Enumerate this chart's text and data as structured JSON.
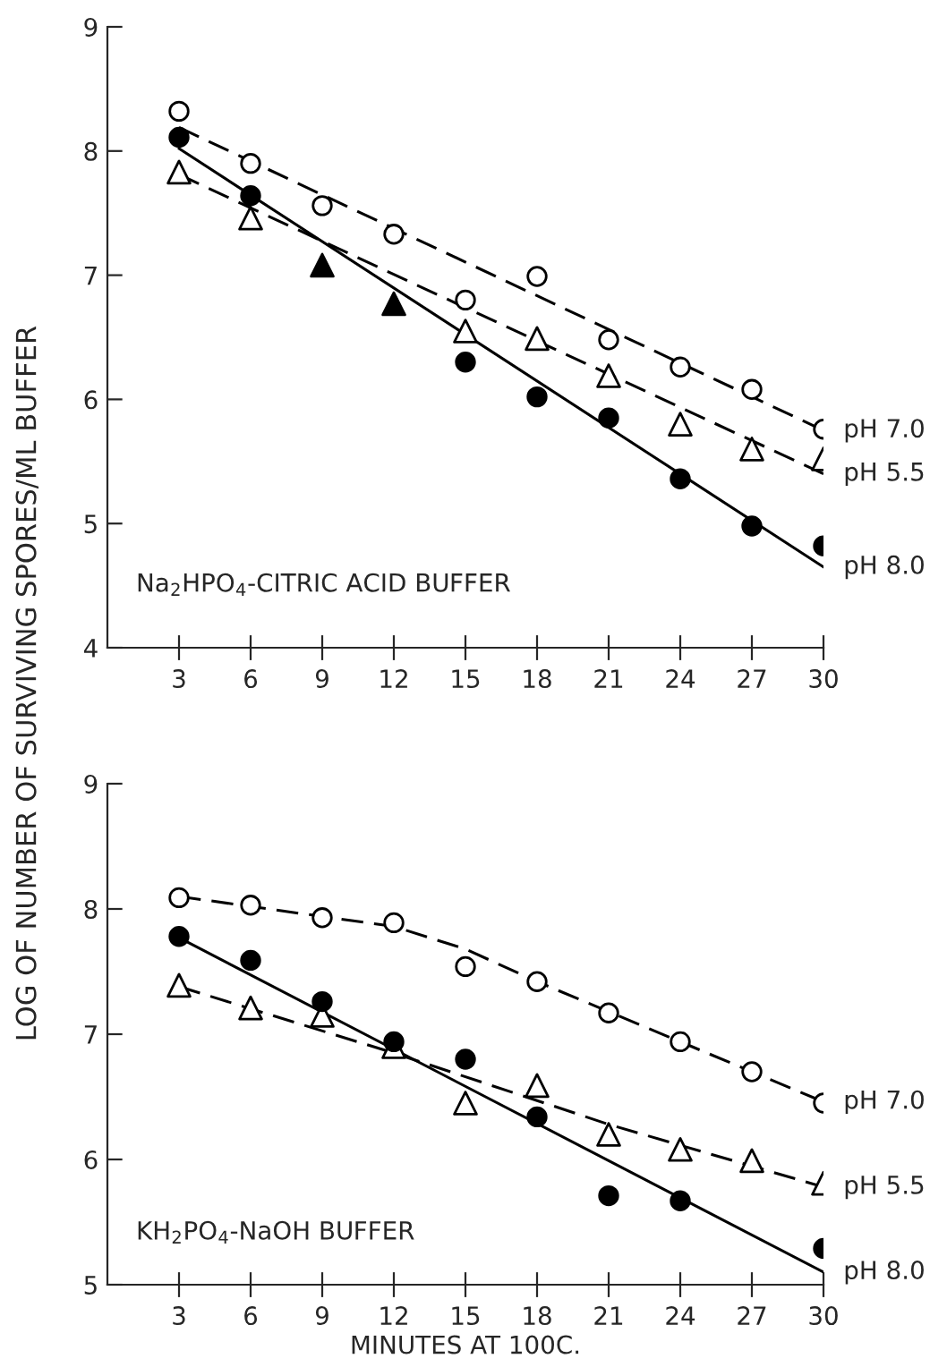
{
  "chart_data": [
    {
      "type": "scatter",
      "ylabel": "LOG OF NUMBER OF SURVIVING SPORES/ML BUFFER",
      "annotations": [
        "Na$_{2}$HPO$_{4}$-CITRIC ACID BUFFER"
      ],
      "xlim": [
        0,
        30
      ],
      "xticks": [
        3,
        6,
        9,
        12,
        15,
        18,
        21,
        24,
        27,
        30
      ],
      "ylim": [
        4,
        9
      ],
      "yticks": [
        4,
        5,
        6,
        7,
        8,
        9
      ],
      "grid": false,
      "legend": false,
      "series": [
        {
          "marker": "circle",
          "color": "#ffffff",
          "x": [
            3,
            6,
            9,
            12,
            15,
            18,
            21,
            24,
            27,
            30
          ],
          "values": [
            8.32,
            7.9,
            7.56,
            7.33,
            6.8,
            6.99,
            6.48,
            6.26,
            6.08,
            5.76
          ]
        },
        {
          "marker": "triangle",
          "color": "#ffffff",
          "x": [
            3,
            6,
            15,
            18,
            21,
            24,
            27,
            30
          ],
          "values": [
            7.83,
            7.46,
            6.55,
            6.49,
            6.19,
            5.8,
            5.6,
            5.52
          ]
        },
        {
          "marker": "triangle",
          "color": "#000000",
          "x": [
            9,
            12
          ],
          "values": [
            7.08,
            6.77
          ]
        },
        {
          "marker": "circle",
          "color": "#000000",
          "x": [
            3,
            6,
            15,
            18,
            21,
            24,
            27,
            30
          ],
          "values": [
            8.11,
            7.64,
            6.3,
            6.02,
            5.85,
            5.36,
            4.98,
            4.82
          ]
        },
        {
          "type": "line",
          "name": "pH 7.0",
          "line_style": "dashed",
          "color": "#000000",
          "x": [
            3,
            30
          ],
          "values": [
            8.19,
            5.75
          ]
        },
        {
          "type": "line",
          "name": "pH 5.5",
          "line_style": "dashed",
          "color": "#000000",
          "x": [
            3,
            30
          ],
          "values": [
            7.81,
            5.4
          ]
        },
        {
          "type": "line",
          "name": "pH 8.0",
          "line_style": "solid",
          "color": "#000000",
          "x": [
            3,
            30
          ],
          "values": [
            8.02,
            4.65
          ]
        }
      ]
    },
    {
      "type": "scatter",
      "xlabel": "MINUTES AT 100C.",
      "annotations": [
        "KH$_{2}$PO$_{4}$-NaOH BUFFER"
      ],
      "xlim": [
        0,
        30
      ],
      "xticks": [
        3,
        6,
        9,
        12,
        15,
        18,
        21,
        24,
        27,
        30
      ],
      "ylim": [
        5,
        9
      ],
      "yticks": [
        5,
        6,
        7,
        8,
        9
      ],
      "grid": false,
      "legend": false,
      "series": [
        {
          "marker": "circle",
          "color": "#ffffff",
          "x": [
            3,
            6,
            9,
            12,
            15,
            18,
            21,
            24,
            27,
            30
          ],
          "values": [
            8.09,
            8.03,
            7.93,
            7.89,
            7.54,
            7.42,
            7.17,
            6.94,
            6.7,
            6.45
          ]
        },
        {
          "marker": "triangle",
          "color": "#ffffff",
          "x": [
            3,
            6,
            9,
            12,
            15,
            18,
            21,
            24,
            27,
            30
          ],
          "values": [
            7.39,
            7.21,
            7.15,
            6.9,
            6.45,
            6.59,
            6.2,
            6.08,
            5.99,
            5.81
          ]
        },
        {
          "marker": "circle",
          "color": "#000000",
          "x": [
            3,
            6,
            9,
            12,
            15,
            18,
            21,
            24,
            30
          ],
          "values": [
            7.78,
            7.59,
            7.26,
            6.94,
            6.8,
            6.34,
            5.71,
            5.67,
            5.29
          ]
        },
        {
          "type": "line",
          "name": "pH 7.0",
          "line_style": "dashed",
          "color": "#000000",
          "x": [
            3,
            6,
            9,
            12,
            15,
            18,
            21,
            24,
            27,
            30
          ],
          "values": [
            8.1,
            8.02,
            7.94,
            7.86,
            7.68,
            7.42,
            7.18,
            6.94,
            6.7,
            6.46
          ]
        },
        {
          "type": "line",
          "name": "pH 5.5",
          "line_style": "dashed",
          "color": "#000000",
          "x": [
            3,
            12,
            21,
            30
          ],
          "values": [
            7.38,
            6.85,
            6.28,
            5.78
          ]
        },
        {
          "type": "line",
          "name": "pH 8.0",
          "line_style": "solid",
          "color": "#000000",
          "x": [
            3,
            30
          ],
          "values": [
            7.77,
            5.1
          ]
        }
      ]
    }
  ]
}
